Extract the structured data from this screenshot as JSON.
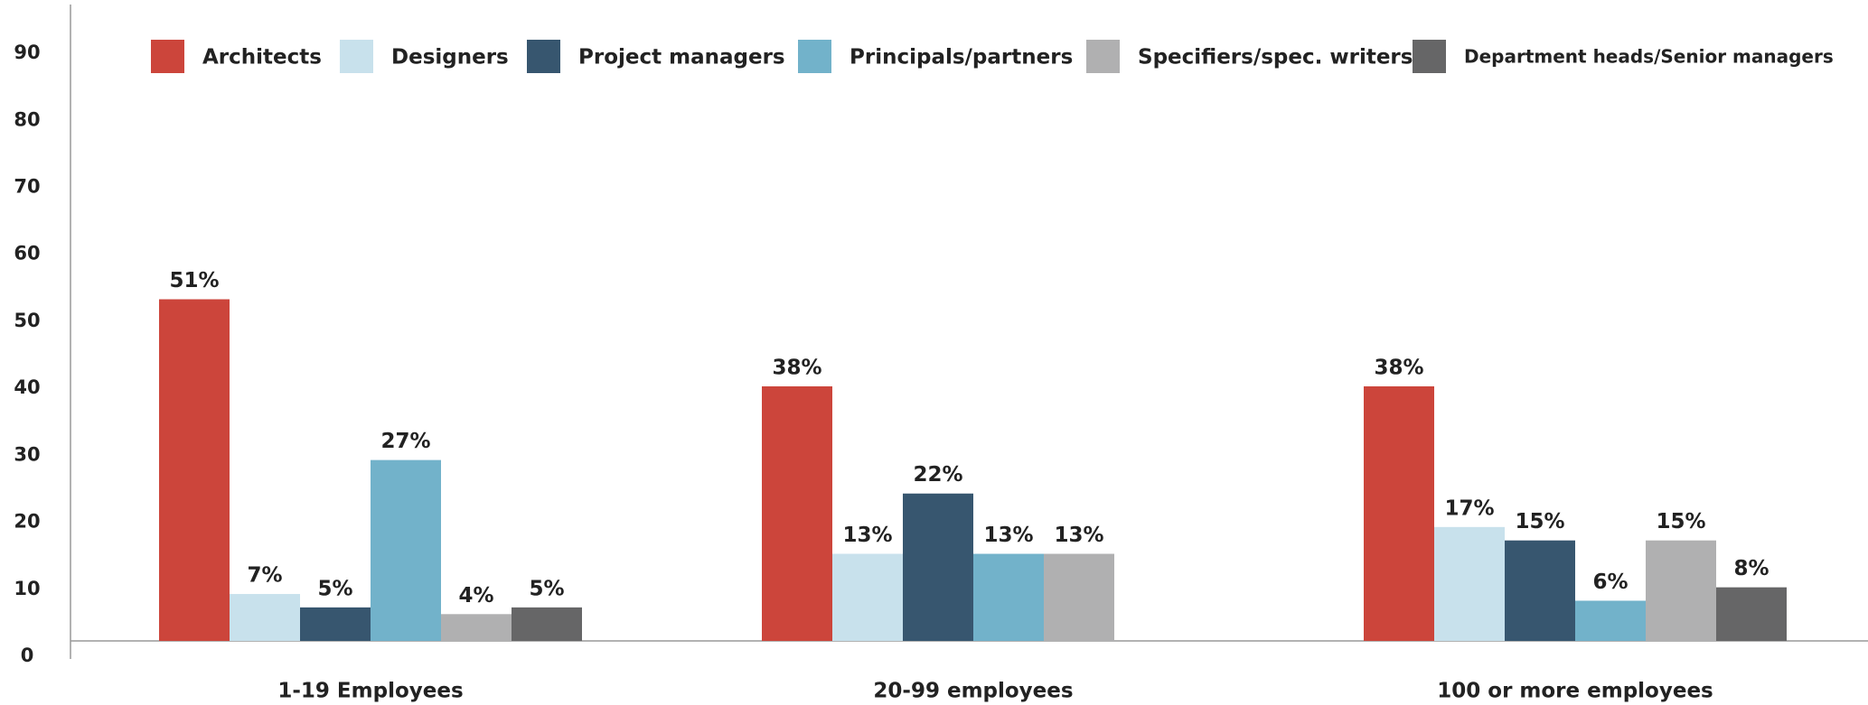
{
  "chart_data": {
    "type": "bar",
    "categories": [
      "1-19 Employees",
      "20-99 employees",
      "100 or more employees"
    ],
    "series": [
      {
        "name": "Architects",
        "color": "#cc453b",
        "values": [
          51,
          38,
          38
        ],
        "value_labels": [
          "51%",
          "38%",
          "38%"
        ]
      },
      {
        "name": "Designers",
        "color": "#c8e1ec",
        "values": [
          7,
          13,
          17
        ],
        "value_labels": [
          "7%",
          "13%",
          "17%"
        ]
      },
      {
        "name": "Project managers",
        "color": "#37566f",
        "values": [
          5,
          22,
          15
        ],
        "value_labels": [
          "5%",
          "22%",
          "15%"
        ]
      },
      {
        "name": "Principals/partners",
        "color": "#72b2ca",
        "values": [
          27,
          13,
          6
        ],
        "value_labels": [
          "27%",
          "13%",
          "6%"
        ]
      },
      {
        "name": "Specifiers/spec. writers",
        "color": "#b0b0b1",
        "values": [
          4,
          13,
          15
        ],
        "value_labels": [
          "4%",
          "13%",
          "15%"
        ]
      },
      {
        "name": "Department heads/Senior managers",
        "color": "#666667",
        "values": [
          5,
          null,
          8
        ],
        "value_labels": [
          "5%",
          null,
          "8%"
        ]
      }
    ],
    "ylim": [
      0,
      95
    ],
    "yticks": [
      0,
      10,
      20,
      30,
      40,
      50,
      60,
      70,
      80,
      90
    ],
    "grid": false,
    "legend": "top"
  }
}
